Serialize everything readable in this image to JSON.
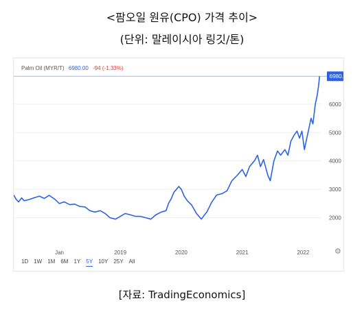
{
  "titles": {
    "main": "<팜오일 원유(CPO) 가격 추이>",
    "unit": "(단위: 말레이시아 링깃/톤)"
  },
  "header": {
    "name": "Palm Oil (MYR/T)",
    "price": "6980.00",
    "change": "-94 (-1.33%)"
  },
  "source": "[자료: TradingEconomics]",
  "ranges": [
    "1D",
    "1W",
    "1M",
    "6M",
    "1Y",
    "5Y",
    "10Y",
    "25Y",
    "All"
  ],
  "active_range": "5Y",
  "colors": {
    "line": "#2b61e3",
    "price_label_bg": "#2b61e3",
    "change": "#e03a3a"
  },
  "chart_data": {
    "type": "line",
    "title": "Palm Oil (MYR/T)",
    "y_ticks": [
      2000,
      3000,
      4000,
      5000,
      6000
    ],
    "x_ticks": [
      "Jan",
      "2019",
      "2020",
      "2021",
      "2022"
    ],
    "ylim": [
      1050,
      7130
    ],
    "xlim": [
      2017.25,
      2022.3
    ],
    "last_value_label": "6980.0",
    "series": [
      {
        "values": [
          {
            "x": 2017.25,
            "y": 2800
          },
          {
            "x": 2017.29,
            "y": 2650
          },
          {
            "x": 2017.33,
            "y": 2560
          },
          {
            "x": 2017.38,
            "y": 2700
          },
          {
            "x": 2017.42,
            "y": 2600
          },
          {
            "x": 2017.5,
            "y": 2640
          },
          {
            "x": 2017.58,
            "y": 2700
          },
          {
            "x": 2017.67,
            "y": 2760
          },
          {
            "x": 2017.75,
            "y": 2680
          },
          {
            "x": 2017.83,
            "y": 2790
          },
          {
            "x": 2017.92,
            "y": 2660
          },
          {
            "x": 2018.0,
            "y": 2500
          },
          {
            "x": 2018.08,
            "y": 2560
          },
          {
            "x": 2018.17,
            "y": 2460
          },
          {
            "x": 2018.25,
            "y": 2480
          },
          {
            "x": 2018.33,
            "y": 2400
          },
          {
            "x": 2018.42,
            "y": 2380
          },
          {
            "x": 2018.5,
            "y": 2250
          },
          {
            "x": 2018.58,
            "y": 2200
          },
          {
            "x": 2018.67,
            "y": 2250
          },
          {
            "x": 2018.75,
            "y": 2150
          },
          {
            "x": 2018.83,
            "y": 2000
          },
          {
            "x": 2018.92,
            "y": 1950
          },
          {
            "x": 2019.0,
            "y": 2050
          },
          {
            "x": 2019.08,
            "y": 2150
          },
          {
            "x": 2019.17,
            "y": 2100
          },
          {
            "x": 2019.25,
            "y": 2050
          },
          {
            "x": 2019.33,
            "y": 2050
          },
          {
            "x": 2019.42,
            "y": 2000
          },
          {
            "x": 2019.5,
            "y": 1950
          },
          {
            "x": 2019.58,
            "y": 2100
          },
          {
            "x": 2019.67,
            "y": 2200
          },
          {
            "x": 2019.75,
            "y": 2250
          },
          {
            "x": 2019.79,
            "y": 2500
          },
          {
            "x": 2019.83,
            "y": 2650
          },
          {
            "x": 2019.88,
            "y": 2900
          },
          {
            "x": 2019.92,
            "y": 3000
          },
          {
            "x": 2019.96,
            "y": 3100
          },
          {
            "x": 2020.0,
            "y": 3000
          },
          {
            "x": 2020.05,
            "y": 2750
          },
          {
            "x": 2020.1,
            "y": 2600
          },
          {
            "x": 2020.17,
            "y": 2450
          },
          {
            "x": 2020.25,
            "y": 2150
          },
          {
            "x": 2020.33,
            "y": 1950
          },
          {
            "x": 2020.38,
            "y": 2100
          },
          {
            "x": 2020.42,
            "y": 2200
          },
          {
            "x": 2020.5,
            "y": 2550
          },
          {
            "x": 2020.58,
            "y": 2800
          },
          {
            "x": 2020.67,
            "y": 2850
          },
          {
            "x": 2020.75,
            "y": 2950
          },
          {
            "x": 2020.83,
            "y": 3300
          },
          {
            "x": 2020.92,
            "y": 3500
          },
          {
            "x": 2021.0,
            "y": 3700
          },
          {
            "x": 2021.06,
            "y": 3450
          },
          {
            "x": 2021.12,
            "y": 3800
          },
          {
            "x": 2021.2,
            "y": 4000
          },
          {
            "x": 2021.25,
            "y": 4200
          },
          {
            "x": 2021.3,
            "y": 3800
          },
          {
            "x": 2021.35,
            "y": 4050
          },
          {
            "x": 2021.42,
            "y": 3500
          },
          {
            "x": 2021.46,
            "y": 3300
          },
          {
            "x": 2021.52,
            "y": 4000
          },
          {
            "x": 2021.58,
            "y": 4350
          },
          {
            "x": 2021.63,
            "y": 4200
          },
          {
            "x": 2021.7,
            "y": 4400
          },
          {
            "x": 2021.75,
            "y": 4200
          },
          {
            "x": 2021.8,
            "y": 4700
          },
          {
            "x": 2021.85,
            "y": 4900
          },
          {
            "x": 2021.9,
            "y": 5050
          },
          {
            "x": 2021.94,
            "y": 4800
          },
          {
            "x": 2021.98,
            "y": 5050
          },
          {
            "x": 2022.02,
            "y": 4400
          },
          {
            "x": 2022.06,
            "y": 4800
          },
          {
            "x": 2022.1,
            "y": 5200
          },
          {
            "x": 2022.13,
            "y": 5500
          },
          {
            "x": 2022.16,
            "y": 5300
          },
          {
            "x": 2022.2,
            "y": 6000
          },
          {
            "x": 2022.23,
            "y": 6300
          },
          {
            "x": 2022.25,
            "y": 6600
          },
          {
            "x": 2022.27,
            "y": 6980
          }
        ]
      }
    ]
  }
}
